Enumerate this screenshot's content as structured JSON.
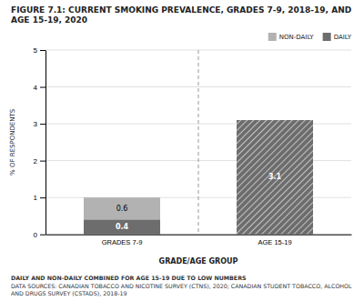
{
  "chart_data": {
    "type": "bar",
    "title": "FIGURE 7.1: CURRENT SMOKING PREVALENCE, GRADES 7-9, 2018-19, AND AGE 15-19, 2020",
    "categories": [
      "GRADES 7-9",
      "AGE 15-19"
    ],
    "series": [
      {
        "name": "NON-DAILY",
        "color": "#b2b2b2",
        "values": [
          0.6,
          null
        ]
      },
      {
        "name": "DAILY",
        "color": "#6d6d6d",
        "values": [
          0.4,
          null
        ]
      },
      {
        "color": "#6d6d6d",
        "values": [
          null,
          3.1
        ]
      }
    ],
    "stacked": true,
    "data_labels": true,
    "x_label": "GRADE/AGE GROUP",
    "y_label": "% OF RESPONDENTS",
    "ylim": [
      0,
      5
    ],
    "yticks": [
      0,
      1,
      2,
      3,
      4,
      5
    ],
    "grid": true,
    "legend": "top-right",
    "annotations": [
      "DAILY AND NON-DAILY COMBINED FOR AGE 15-19 DUE TO LOW NUMBERS",
      "DATA SOURCES: CANADIAN TOBACCO AND NICOTINE SURVEY (CTNS), 2020; CANADIAN STUDENT TOBACCO, ALCOHOL AND DRUGS SURVEY (CSTADS), 2018-19"
    ]
  }
}
